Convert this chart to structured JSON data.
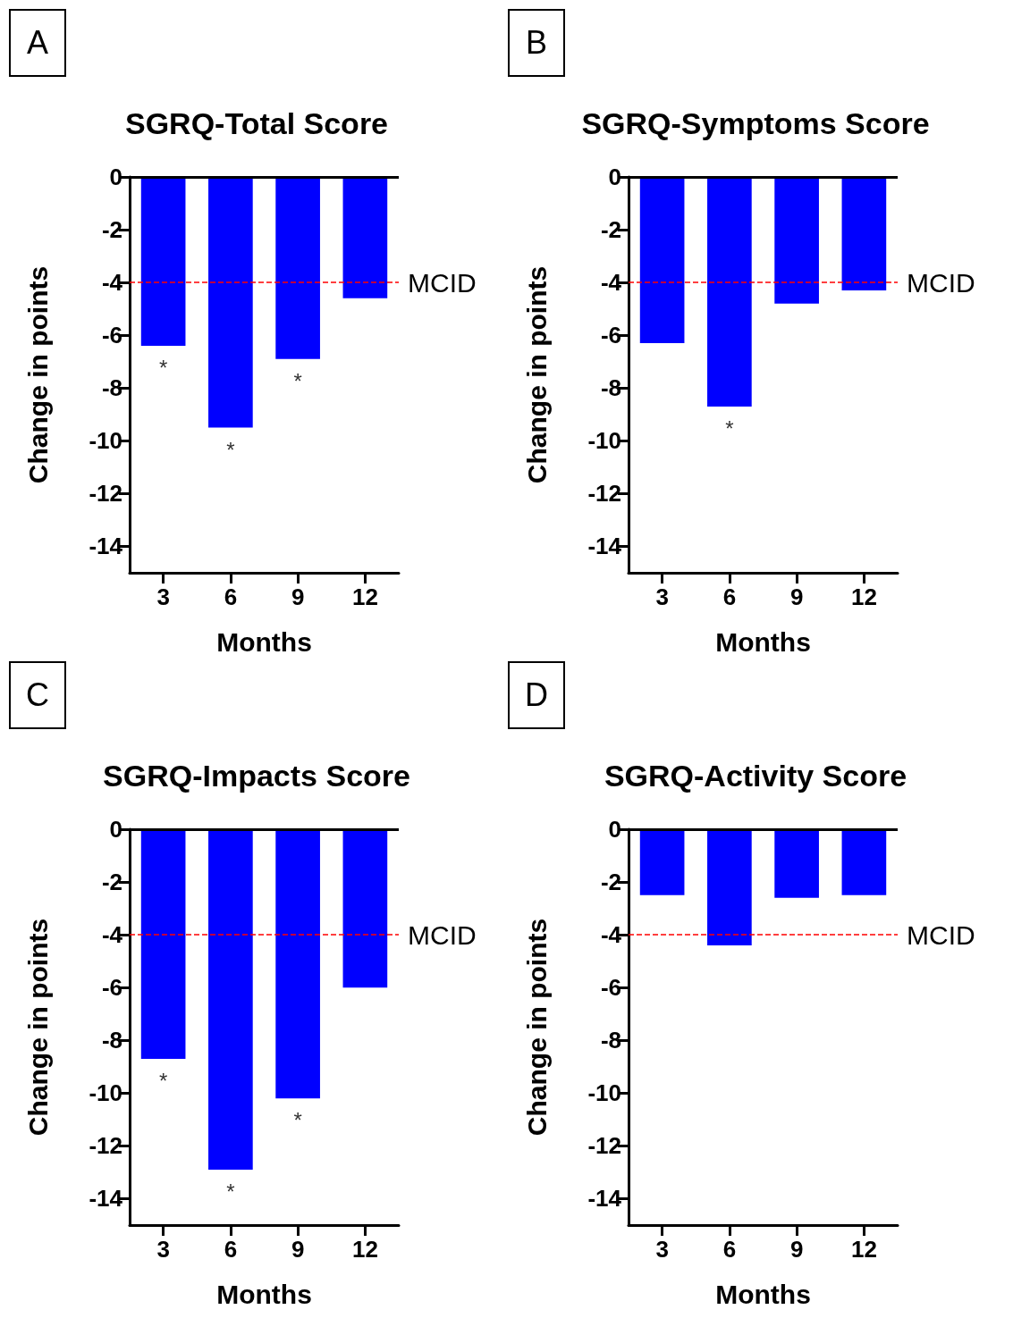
{
  "chart_data": [
    {
      "type": "bar",
      "title": "SGRQ-Total Score",
      "xlabel": "Months",
      "ylabel": "Change in points",
      "categories": [
        "3",
        "6",
        "9",
        "12"
      ],
      "series": [
        {
          "color": "#0000ff",
          "values": [
            -6.4,
            -9.5,
            -6.9,
            -4.6
          ]
        }
      ],
      "ylim": [
        -15,
        0
      ],
      "yticks": [
        0,
        -2,
        -4,
        -6,
        -8,
        -10,
        -12,
        -14
      ],
      "ref_lines": [
        {
          "axis": "y",
          "value": 0,
          "color": "#000000",
          "line_style": "solid"
        },
        {
          "axis": "y",
          "value": -4,
          "label": "MCID",
          "color": "#ff0000",
          "line_style": "dashed"
        }
      ],
      "annotations": [
        "A",
        {
          "text": "*",
          "x": "3",
          "y": -6.4
        },
        {
          "text": "*",
          "x": "6",
          "y": -9.5
        },
        {
          "text": "*",
          "x": "9",
          "y": -6.9
        }
      ]
    },
    {
      "type": "bar",
      "title": "SGRQ-Symptoms Score",
      "xlabel": "Months",
      "ylabel": "Change in points",
      "categories": [
        "3",
        "6",
        "9",
        "12"
      ],
      "series": [
        {
          "color": "#0000ff",
          "values": [
            -6.3,
            -8.7,
            -4.8,
            -4.3
          ]
        }
      ],
      "ylim": [
        -15,
        0
      ],
      "yticks": [
        0,
        -2,
        -4,
        -6,
        -8,
        -10,
        -12,
        -14
      ],
      "ref_lines": [
        {
          "axis": "y",
          "value": 0,
          "color": "#000000",
          "line_style": "solid"
        },
        {
          "axis": "y",
          "value": -4,
          "label": "MCID",
          "color": "#ff0000",
          "line_style": "dashed"
        }
      ],
      "annotations": [
        "B",
        {
          "text": "*",
          "x": "6",
          "y": -8.7
        }
      ]
    },
    {
      "type": "bar",
      "title": "SGRQ-Impacts Score",
      "xlabel": "Months",
      "ylabel": "Change in points",
      "categories": [
        "3",
        "6",
        "9",
        "12"
      ],
      "series": [
        {
          "color": "#0000ff",
          "values": [
            -8.7,
            -12.9,
            -10.2,
            -6.0
          ]
        }
      ],
      "ylim": [
        -15,
        0
      ],
      "yticks": [
        0,
        -2,
        -4,
        -6,
        -8,
        -10,
        -12,
        -14
      ],
      "ref_lines": [
        {
          "axis": "y",
          "value": 0,
          "color": "#000000",
          "line_style": "solid"
        },
        {
          "axis": "y",
          "value": -4,
          "label": "MCID",
          "color": "#ff0000",
          "line_style": "dashed"
        }
      ],
      "annotations": [
        "C",
        {
          "text": "*",
          "x": "3",
          "y": -8.7
        },
        {
          "text": "*",
          "x": "6",
          "y": -12.9
        },
        {
          "text": "*",
          "x": "9",
          "y": -10.2
        }
      ]
    },
    {
      "type": "bar",
      "title": "SGRQ-Activity Score",
      "xlabel": "Months",
      "ylabel": "Change in points",
      "categories": [
        "3",
        "6",
        "9",
        "12"
      ],
      "series": [
        {
          "color": "#0000ff",
          "values": [
            -2.5,
            -4.4,
            -2.6,
            -2.5
          ]
        }
      ],
      "ylim": [
        -15,
        0
      ],
      "yticks": [
        0,
        -2,
        -4,
        -6,
        -8,
        -10,
        -12,
        -14
      ],
      "ref_lines": [
        {
          "axis": "y",
          "value": 0,
          "color": "#000000",
          "line_style": "solid"
        },
        {
          "axis": "y",
          "value": -4,
          "label": "MCID",
          "color": "#ff0000",
          "line_style": "dashed"
        }
      ],
      "annotations": [
        "D"
      ]
    }
  ]
}
